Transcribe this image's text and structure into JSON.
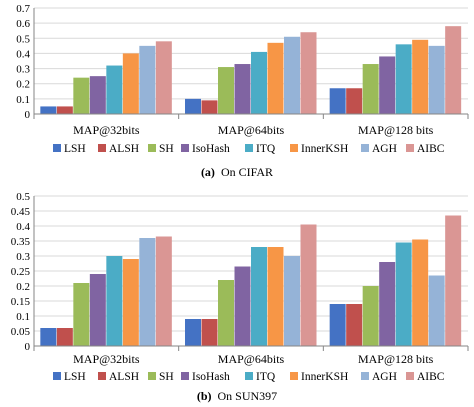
{
  "chart_data": [
    {
      "type": "bar",
      "categories": [
        "MAP@32bits",
        "MAP@64bits",
        "MAP@128 bits"
      ],
      "series": [
        {
          "name": "LSH",
          "color": "#4472C4",
          "values": [
            0.05,
            0.1,
            0.17
          ]
        },
        {
          "name": "ALSH",
          "color": "#C0504D",
          "values": [
            0.05,
            0.09,
            0.17
          ]
        },
        {
          "name": "SH",
          "color": "#9BBB59",
          "values": [
            0.24,
            0.31,
            0.33
          ]
        },
        {
          "name": "IsoHash",
          "color": "#8064A2",
          "values": [
            0.25,
            0.33,
            0.38
          ]
        },
        {
          "name": "ITQ",
          "color": "#4BACC6",
          "values": [
            0.32,
            0.41,
            0.46
          ]
        },
        {
          "name": "InnerKSH",
          "color": "#F79646",
          "values": [
            0.4,
            0.47,
            0.49
          ]
        },
        {
          "name": "AGH",
          "color": "#95B3D7",
          "values": [
            0.45,
            0.51,
            0.45
          ]
        },
        {
          "name": "AIBC",
          "color": "#DA9694",
          "values": [
            0.48,
            0.54,
            0.58
          ]
        }
      ],
      "yticks": [
        "0",
        "0.1",
        "0.2",
        "0.3",
        "0.4",
        "0.5",
        "0.6",
        "0.7"
      ],
      "ylim": [
        0,
        0.7
      ],
      "grid": true,
      "legend": "bottom",
      "caption": {
        "label": "(a)",
        "text": "On CIFAR"
      }
    },
    {
      "type": "bar",
      "categories": [
        "MAP@32bits",
        "MAP@64bits",
        "MAP@128 bits"
      ],
      "series": [
        {
          "name": "LSH",
          "color": "#4472C4",
          "values": [
            0.06,
            0.09,
            0.14
          ]
        },
        {
          "name": "ALSH",
          "color": "#C0504D",
          "values": [
            0.06,
            0.09,
            0.14
          ]
        },
        {
          "name": "SH",
          "color": "#9BBB59",
          "values": [
            0.21,
            0.22,
            0.2
          ]
        },
        {
          "name": "IsoHash",
          "color": "#8064A2",
          "values": [
            0.24,
            0.265,
            0.28
          ]
        },
        {
          "name": "ITQ",
          "color": "#4BACC6",
          "values": [
            0.3,
            0.33,
            0.345
          ]
        },
        {
          "name": "InnerKSH",
          "color": "#F79646",
          "values": [
            0.29,
            0.33,
            0.355
          ]
        },
        {
          "name": "AGH",
          "color": "#95B3D7",
          "values": [
            0.36,
            0.3,
            0.235
          ]
        },
        {
          "name": "AIBC",
          "color": "#DA9694",
          "values": [
            0.365,
            0.405,
            0.435
          ]
        }
      ],
      "yticks": [
        "0",
        "0.05",
        "0.1",
        "0.15",
        "0.2",
        "0.25",
        "0.3",
        "0.35",
        "0.4",
        "0.45",
        "0.5"
      ],
      "ylim": [
        0,
        0.5
      ],
      "grid": true,
      "legend": "bottom",
      "caption": {
        "label": "(b)",
        "text": "On SUN397"
      }
    }
  ]
}
